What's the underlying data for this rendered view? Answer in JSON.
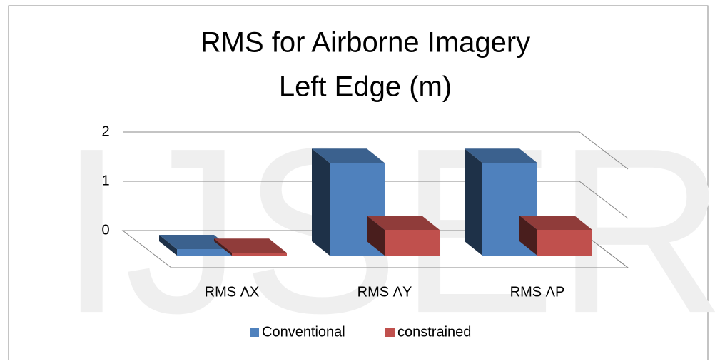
{
  "watermark": "IJSER",
  "chart_data": {
    "type": "bar3d",
    "title": [
      "RMS for Airborne Imagery",
      "Left Edge (m)"
    ],
    "categories": [
      "RMS ΛX",
      "RMS ΛY",
      "RMS ΛP"
    ],
    "series": [
      {
        "name": "Conventional",
        "color": "#4f81bd",
        "values": [
          0.12,
          1.73,
          1.73
        ]
      },
      {
        "name": "constrained",
        "color": "#c0504d",
        "values": [
          0.05,
          0.48,
          0.48
        ]
      }
    ],
    "ylim": [
      0,
      2
    ],
    "yticks": [
      0,
      1,
      2
    ],
    "grid": true,
    "legend": "bottom"
  }
}
